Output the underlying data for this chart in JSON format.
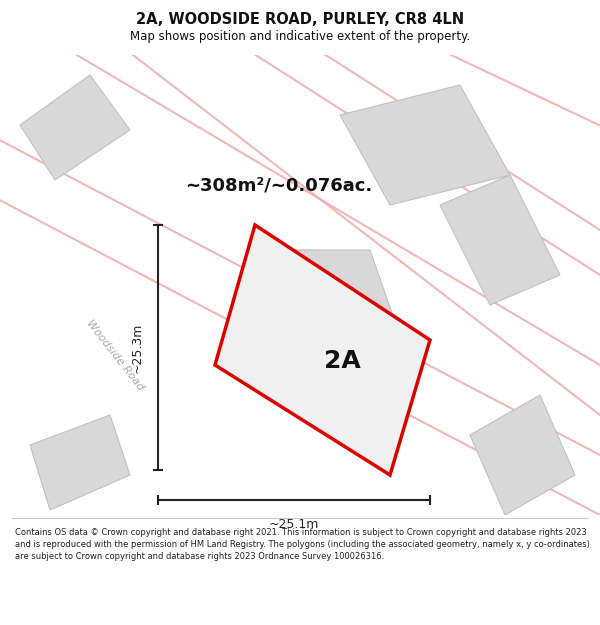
{
  "title": "2A, WOODSIDE ROAD, PURLEY, CR8 4LN",
  "subtitle": "Map shows position and indicative extent of the property.",
  "area_text": "~308m²/~0.076ac.",
  "label_2A": "2A",
  "dim_horizontal": "~25.1m",
  "dim_vertical": "~25.3m",
  "road_label": "Woodside Road",
  "footer": "Contains OS data © Crown copyright and database right 2021. This information is subject to Crown copyright and database rights 2023 and is reproduced with the permission of HM Land Registry. The polygons (including the associated geometry, namely x, y co-ordinates) are subject to Crown copyright and database rights 2023 Ordnance Survey 100026316.",
  "map_bg": "#ffffff",
  "plot_fill": "#e8e8e8",
  "plot_edge": "#dd0000",
  "road_line_color": "#f0b0b0",
  "gray_poly_fill": "#d8d8d8",
  "gray_poly_edge": "#c0c0c0",
  "dim_line_color": "#222222",
  "road_label_color": "#aaaaaa",
  "area_text_color": "#111111",
  "label_color": "#111111"
}
